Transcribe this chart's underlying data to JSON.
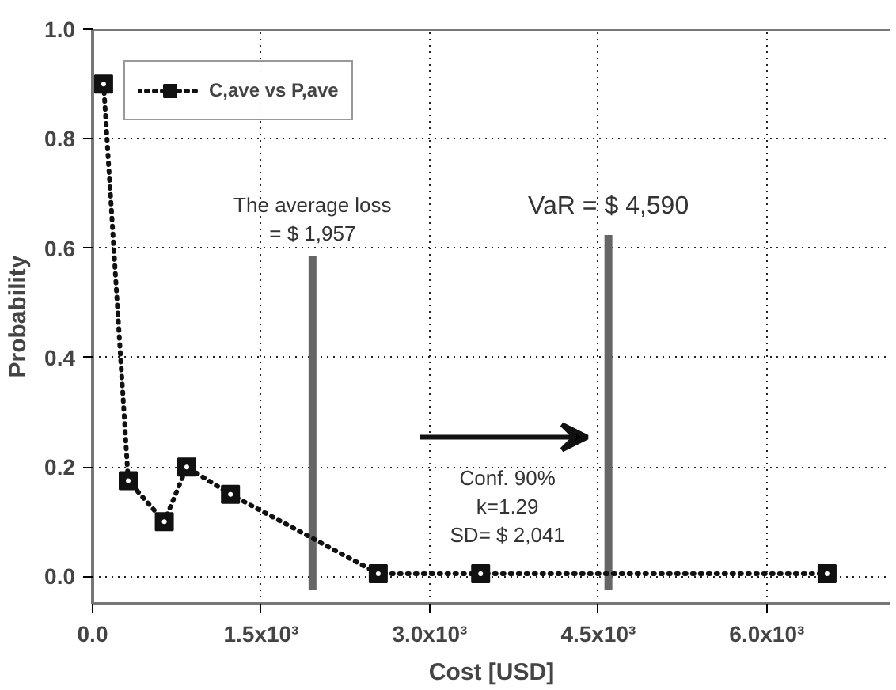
{
  "chart_data": {
    "type": "line",
    "xlabel": "Cost [USD]",
    "ylabel": "Probability",
    "x": [
      98,
      317,
      638,
      838,
      1227,
      2542,
      3453,
      6536
    ],
    "series": [
      {
        "name": "C,ave vs P,ave",
        "color": "#111111",
        "values": [
          0.9,
          0.175,
          0.1,
          0.2,
          0.15,
          0.005,
          0.005,
          0.005
        ]
      }
    ],
    "xlim": [
      0,
      7100
    ],
    "ylim": [
      -0.05,
      1.0
    ],
    "xticks": [
      {
        "value": 0,
        "label": "0.0"
      },
      {
        "value": 1500,
        "label": "1.5x10³"
      },
      {
        "value": 3000,
        "label": "3.0x10³"
      },
      {
        "value": 4500,
        "label": "4.5x10³"
      },
      {
        "value": 6000,
        "label": "6.0x10³"
      }
    ],
    "yticks": [
      {
        "value": 0,
        "label": "0.0"
      },
      {
        "value": 0.2,
        "label": "0.2"
      },
      {
        "value": 0.4,
        "label": "0.4"
      },
      {
        "value": 0.6,
        "label": "0.6"
      },
      {
        "value": 0.8,
        "label": "0.8"
      },
      {
        "value": 1.0,
        "label": "1.0"
      }
    ],
    "ref_lines": [
      {
        "axis": "x",
        "value": 1957,
        "color": "#666666",
        "label": "The average loss\n= $ 1,957"
      },
      {
        "axis": "x",
        "value": 4590,
        "color": "#666666",
        "label": "VaR = $ 4,590"
      }
    ],
    "annotations": [
      "Conf. 90%\nk=1.29\nSD= $ 2,041"
    ],
    "grid": true,
    "legend": "top left",
    "marker": "square",
    "line_style": "dotted"
  }
}
